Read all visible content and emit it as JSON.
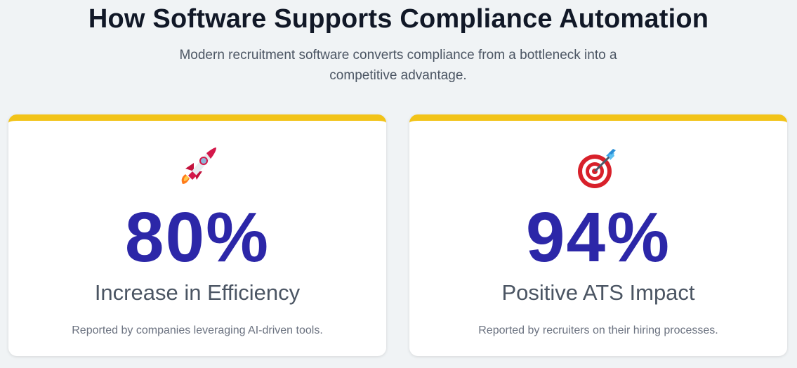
{
  "header": {
    "title": "How Software Supports Compliance Automation",
    "subtitle": "Modern recruitment software converts compliance from a bottleneck into a competitive advantage."
  },
  "cards": [
    {
      "icon": "rocket-icon",
      "value": "80%",
      "label": "Increase in Efficiency",
      "description": "Reported by companies leveraging AI-driven tools."
    },
    {
      "icon": "target-icon",
      "value": "94%",
      "label": "Positive ATS Impact",
      "description": "Reported by recruiters on their hiring processes."
    }
  ],
  "colors": {
    "background": "#f0f3f5",
    "accent_bar": "#f2c318",
    "stat_number": "#2c27a8",
    "title": "#111827",
    "body_text": "#4b5563"
  }
}
